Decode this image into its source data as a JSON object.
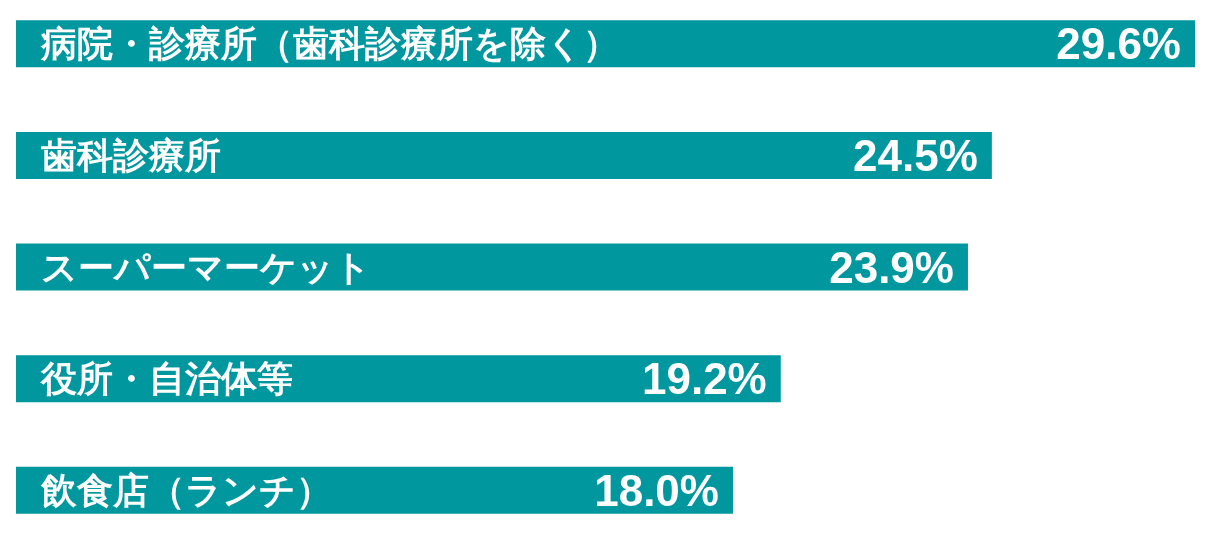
{
  "chart_data": {
    "type": "bar",
    "orientation": "horizontal",
    "categories": [
      "病院・診療所（歯科診療所を除く）",
      "歯科診療所",
      "スーパーマーケット",
      "役所・自治体等",
      "飲食店（ランチ）"
    ],
    "values": [
      29.6,
      24.5,
      23.9,
      19.2,
      18.0
    ],
    "value_labels": [
      "29.6%",
      "24.5%",
      "23.9%",
      "19.2%",
      "18.0%"
    ],
    "color": "#00979f"
  }
}
